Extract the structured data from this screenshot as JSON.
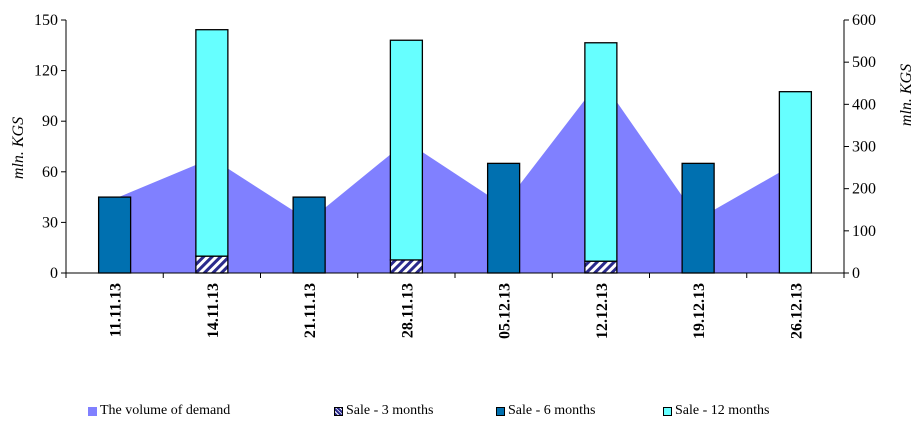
{
  "chart_data": {
    "type": "bar",
    "categories": [
      "11.11.13",
      "14.11.13",
      "21.11.13",
      "28.11.13",
      "05.12.13",
      "12.12.13",
      "19.12.13",
      "26.12.13"
    ],
    "y_left": {
      "label": "mln. KGS",
      "ticks": [
        0,
        30,
        60,
        90,
        120,
        150
      ],
      "ylim": [
        0,
        150
      ]
    },
    "y_right": {
      "label": "mln. KGS",
      "ticks": [
        0,
        100,
        200,
        300,
        400,
        500,
        600
      ],
      "ylim": [
        0,
        600
      ]
    },
    "series": [
      {
        "name": "The volume of demand",
        "kind": "area",
        "axis": "left",
        "color": "#8080ff",
        "values": [
          44,
          68,
          31,
          78,
          40,
          115,
          32,
          65
        ]
      },
      {
        "name": "Sale - 3 months",
        "kind": "bar",
        "axis": "right",
        "color": "#2a2a8c",
        "values": [
          0,
          40,
          0,
          31,
          0,
          28,
          0,
          0
        ]
      },
      {
        "name": "Sale - 6 months",
        "kind": "bar",
        "axis": "right",
        "color": "#0070b0",
        "values": [
          180,
          0,
          180,
          0,
          260,
          0,
          260,
          0
        ]
      },
      {
        "name": "Sale - 12 months",
        "kind": "bar",
        "axis": "right",
        "color": "#66ffff",
        "values": [
          0,
          537,
          0,
          521,
          0,
          518,
          0,
          430
        ]
      }
    ],
    "grid": false,
    "legend": "bottom"
  }
}
